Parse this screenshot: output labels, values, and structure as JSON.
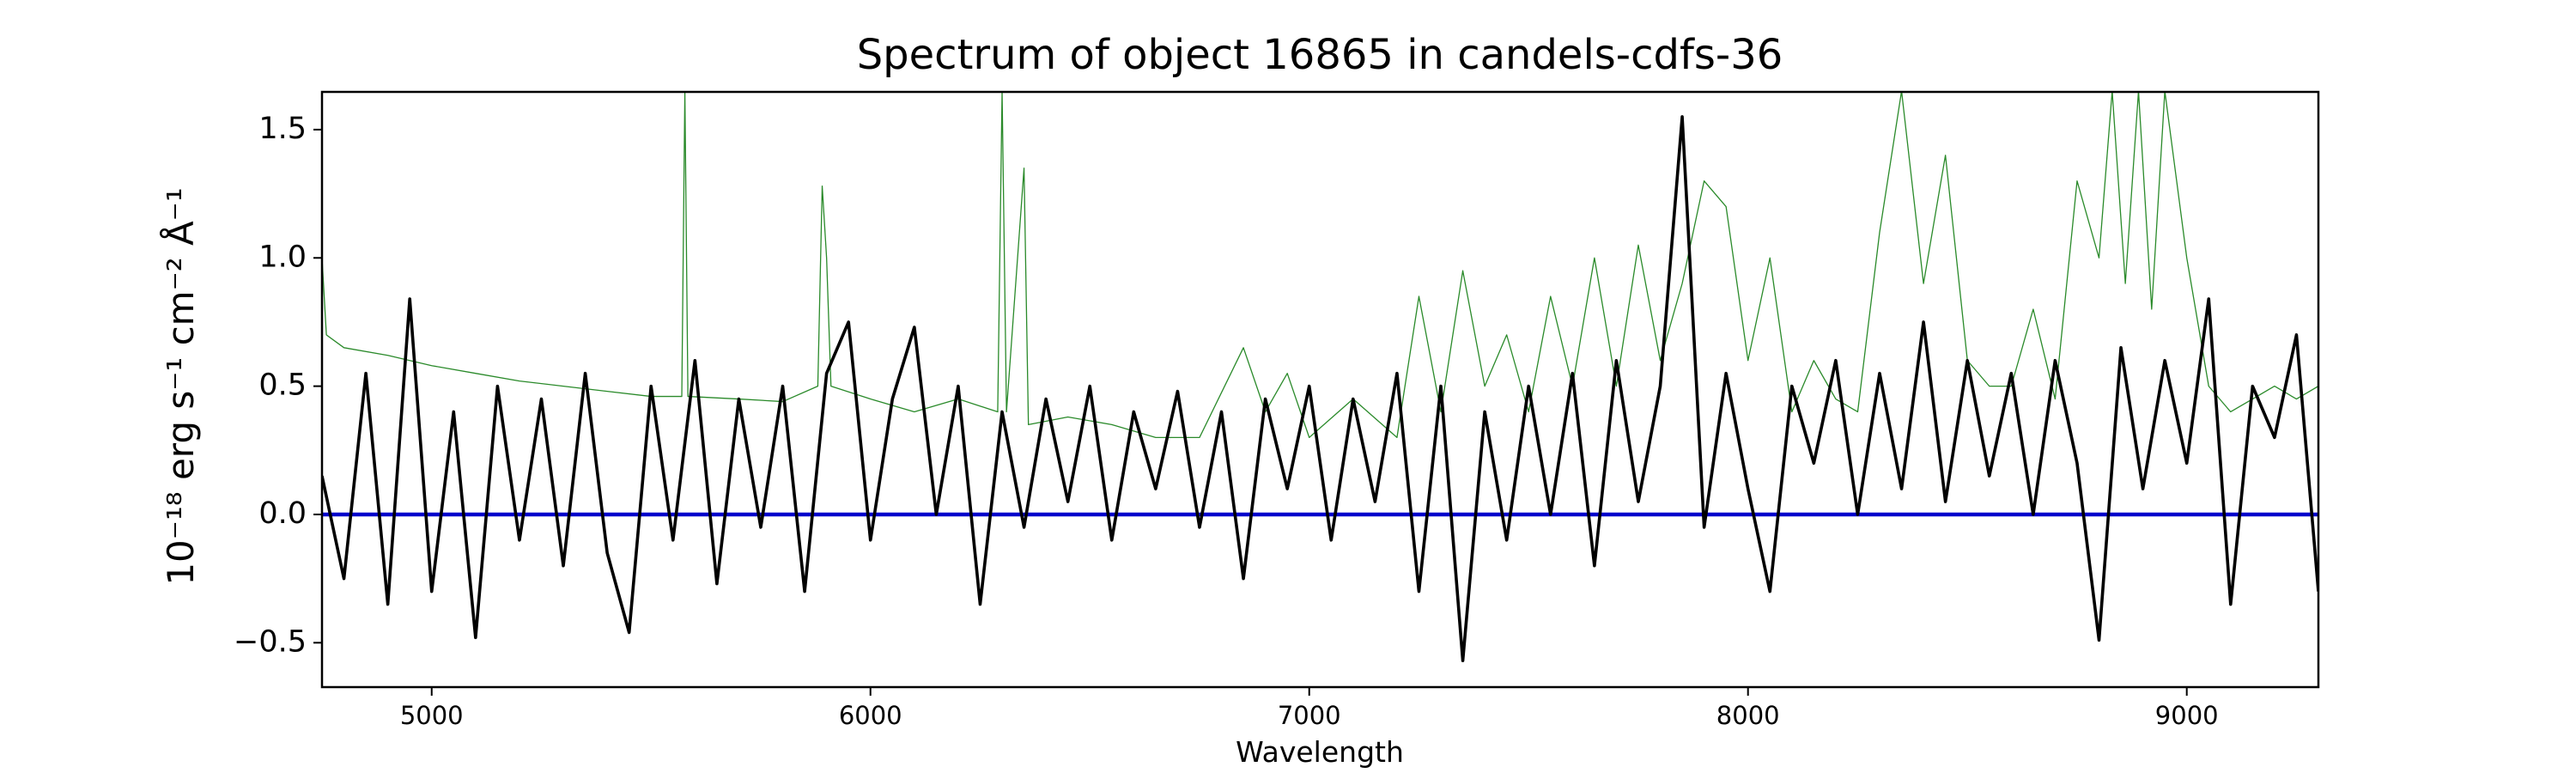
{
  "chart_data": {
    "type": "line",
    "title": "Spectrum of object 16865 in candels-cdfs-36",
    "x_label": "Wavelength",
    "y_label": "10⁻¹⁸ erg s⁻¹ cm⁻² Å⁻¹",
    "xlim": [
      4750,
      9300
    ],
    "ylim": [
      -0.673,
      1.647
    ],
    "xticks": [
      5000,
      6000,
      7000,
      8000,
      9000
    ],
    "yticks": [
      {
        "value": -0.5,
        "label": "−0.5"
      },
      {
        "value": 0,
        "label": "0.0"
      },
      0.5,
      {
        "value": 1,
        "label": "1.0"
      },
      1.5
    ],
    "grid": false,
    "series": [
      {
        "color": "#2a8a2a",
        "width": 1.3,
        "x": [
          4750,
          4760,
          4800,
          4900,
          5000,
          5100,
          5200,
          5300,
          5400,
          5500,
          5570,
          5577,
          5584,
          5700,
          5800,
          5880,
          5890,
          5900,
          5910,
          6000,
          6100,
          6200,
          6290,
          6300,
          6310,
          6350,
          6360,
          6450,
          6550,
          6650,
          6750,
          6850,
          6900,
          6950,
          7000,
          7100,
          7200,
          7250,
          7300,
          7350,
          7400,
          7450,
          7500,
          7550,
          7600,
          7650,
          7700,
          7750,
          7800,
          7850,
          7900,
          7950,
          8000,
          8050,
          8100,
          8150,
          8200,
          8250,
          8300,
          8350,
          8400,
          8450,
          8500,
          8550,
          8600,
          8650,
          8700,
          8750,
          8800,
          8830,
          8860,
          8890,
          8920,
          8950,
          9000,
          9050,
          9100,
          9150,
          9200,
          9250,
          9300
        ],
        "values": [
          1.0,
          0.7,
          0.65,
          0.62,
          0.58,
          0.55,
          0.52,
          0.5,
          0.48,
          0.46,
          0.46,
          1.65,
          0.46,
          0.45,
          0.44,
          0.5,
          1.28,
          1.0,
          0.5,
          0.45,
          0.4,
          0.45,
          0.4,
          1.65,
          0.4,
          1.35,
          0.35,
          0.38,
          0.35,
          0.3,
          0.3,
          0.65,
          0.4,
          0.55,
          0.3,
          0.45,
          0.3,
          0.85,
          0.4,
          0.95,
          0.5,
          0.7,
          0.4,
          0.85,
          0.5,
          1.0,
          0.5,
          1.05,
          0.6,
          0.9,
          1.3,
          1.2,
          0.6,
          1.0,
          0.4,
          0.6,
          0.45,
          0.4,
          1.1,
          1.65,
          0.9,
          1.4,
          0.6,
          0.5,
          0.5,
          0.8,
          0.45,
          1.3,
          1.0,
          1.65,
          0.9,
          1.65,
          0.8,
          1.65,
          1.0,
          0.5,
          0.4,
          0.45,
          0.5,
          0.45,
          0.5
        ]
      },
      {
        "color": "#0000cc",
        "width": 4.5,
        "x": [
          4750,
          9300
        ],
        "values": [
          0,
          0
        ]
      },
      {
        "color": "#000000",
        "width": 3.6,
        "x": [
          4750,
          4800,
          4850,
          4900,
          4950,
          5000,
          5050,
          5100,
          5150,
          5200,
          5250,
          5300,
          5350,
          5400,
          5450,
          5500,
          5550,
          5600,
          5650,
          5700,
          5750,
          5800,
          5850,
          5900,
          5950,
          6000,
          6050,
          6100,
          6150,
          6200,
          6250,
          6300,
          6350,
          6400,
          6450,
          6500,
          6550,
          6600,
          6650,
          6700,
          6750,
          6800,
          6850,
          6900,
          6950,
          7000,
          7050,
          7100,
          7150,
          7200,
          7250,
          7300,
          7350,
          7400,
          7450,
          7500,
          7550,
          7600,
          7650,
          7700,
          7750,
          7800,
          7850,
          7900,
          7950,
          8000,
          8050,
          8100,
          8150,
          8200,
          8250,
          8300,
          8350,
          8400,
          8450,
          8500,
          8550,
          8600,
          8650,
          8700,
          8750,
          8800,
          8850,
          8900,
          8950,
          9000,
          9050,
          9100,
          9150,
          9200,
          9250,
          9300
        ],
        "values": [
          0.15,
          -0.25,
          0.55,
          -0.35,
          0.84,
          -0.3,
          0.4,
          -0.48,
          0.5,
          -0.1,
          0.45,
          -0.2,
          0.55,
          -0.15,
          -0.46,
          0.5,
          -0.1,
          0.6,
          -0.27,
          0.45,
          -0.05,
          0.5,
          -0.3,
          0.55,
          0.75,
          -0.1,
          0.45,
          0.73,
          0.0,
          0.5,
          -0.35,
          0.4,
          -0.05,
          0.45,
          0.05,
          0.5,
          -0.1,
          0.4,
          0.1,
          0.48,
          -0.05,
          0.4,
          -0.25,
          0.45,
          0.1,
          0.5,
          -0.1,
          0.45,
          0.05,
          0.55,
          -0.3,
          0.5,
          -0.57,
          0.4,
          -0.1,
          0.5,
          0.0,
          0.55,
          -0.2,
          0.6,
          0.05,
          0.5,
          1.55,
          -0.05,
          0.55,
          0.1,
          -0.3,
          0.5,
          0.2,
          0.6,
          0.0,
          0.55,
          0.1,
          0.75,
          0.05,
          0.6,
          0.15,
          0.55,
          0.0,
          0.6,
          0.2,
          -0.49,
          0.65,
          0.1,
          0.6,
          0.2,
          0.84,
          -0.35,
          0.5,
          0.3,
          0.7,
          -0.3
        ]
      }
    ]
  }
}
